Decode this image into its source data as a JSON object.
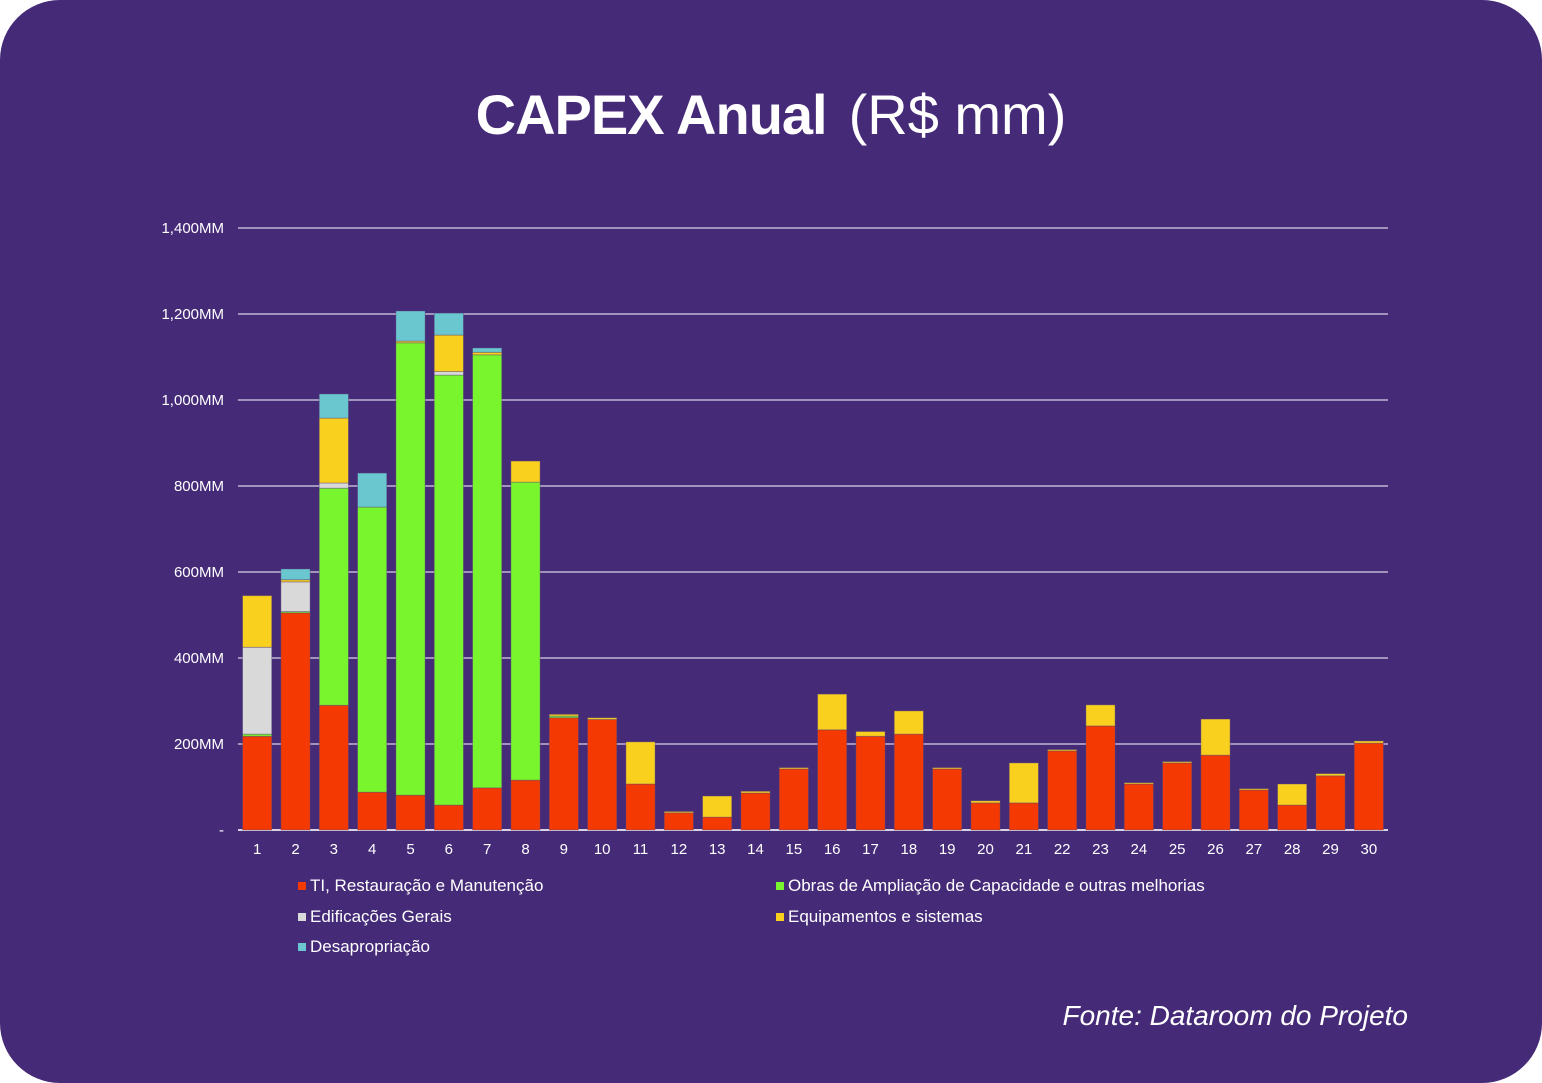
{
  "title": {
    "bold": "CAPEX Anual",
    "light": "(R$ mm)"
  },
  "source": "Fonte: Dataroom do Projeto",
  "chart_data": {
    "type": "bar",
    "stacked": true,
    "title": "CAPEX Anual (R$ mm)",
    "xlabel": "",
    "ylabel": "",
    "ylim": [
      0,
      1400
    ],
    "grid": true,
    "legend_position": "bottom",
    "yticks": [
      0,
      200,
      400,
      600,
      800,
      1000,
      1200,
      1400
    ],
    "ytick_labels": [
      "-",
      "200MM",
      "400MM",
      "600MM",
      "800MM",
      "1,000MM",
      "1,200MM",
      "1,400MM"
    ],
    "categories": [
      "1",
      "2",
      "3",
      "4",
      "5",
      "6",
      "7",
      "8",
      "9",
      "10",
      "11",
      "12",
      "13",
      "14",
      "15",
      "16",
      "17",
      "18",
      "19",
      "20",
      "21",
      "22",
      "23",
      "24",
      "25",
      "26",
      "27",
      "28",
      "29",
      "30"
    ],
    "series": [
      {
        "name": "TI, Restauração e Manutenção",
        "color": "#F43A02",
        "values": [
          218,
          505,
          290,
          88,
          81,
          58,
          98,
          116,
          261,
          257,
          107,
          40,
          30,
          86,
          142,
          233,
          218,
          223,
          142,
          63,
          63,
          184,
          242,
          107,
          156,
          174,
          93,
          58,
          126,
          202
        ]
      },
      {
        "name": "Obras de Ampliação de Capacidade e outras melhorias",
        "color": "#79F52D",
        "values": [
          5,
          3,
          505,
          663,
          1052,
          1000,
          1007,
          693,
          4,
          0,
          0,
          0,
          0,
          0,
          0,
          0,
          0,
          0,
          0,
          0,
          0,
          0,
          0,
          0,
          0,
          0,
          0,
          0,
          0,
          0
        ]
      },
      {
        "name": "Edificações Gerais",
        "color": "#D9D9D9",
        "values": [
          202,
          69,
          12,
          0,
          0,
          8,
          0,
          0,
          0,
          0,
          0,
          0,
          0,
          0,
          0,
          0,
          0,
          0,
          0,
          0,
          0,
          0,
          0,
          0,
          0,
          0,
          0,
          0,
          0,
          0
        ]
      },
      {
        "name": "Equipamentos e sistemas",
        "color": "#F9D01E",
        "values": [
          120,
          5,
          151,
          0,
          4,
          85,
          6,
          49,
          4,
          4,
          98,
          3,
          49,
          4,
          3,
          83,
          11,
          54,
          3,
          5,
          93,
          3,
          49,
          3,
          3,
          84,
          3,
          49,
          5,
          5
        ]
      },
      {
        "name": "Desapropriação",
        "color": "#6AC7CF",
        "values": [
          0,
          25,
          56,
          79,
          70,
          51,
          10,
          0,
          0,
          0,
          0,
          0,
          0,
          0,
          0,
          0,
          0,
          0,
          0,
          0,
          0,
          0,
          0,
          0,
          0,
          0,
          0,
          0,
          0,
          0
        ]
      }
    ]
  }
}
